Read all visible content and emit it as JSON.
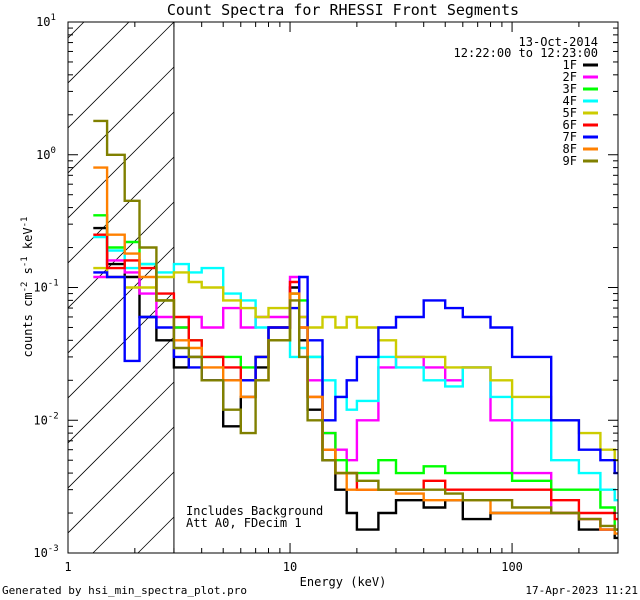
{
  "chart_data": {
    "type": "line",
    "title": "Count Spectra for RHESSI Front Segments",
    "xlabel": "Energy (keV)",
    "ylabel_parts": [
      "counts cm",
      "-2",
      " s",
      "-1",
      " keV",
      "-1"
    ],
    "xscale": "log",
    "yscale": "log",
    "xlim": [
      1,
      300
    ],
    "ylim": [
      0.001,
      10
    ],
    "x_ticks": [
      {
        "value": 1,
        "label": "1"
      },
      {
        "value": 10,
        "label": "10"
      },
      {
        "value": 100,
        "label": "100"
      }
    ],
    "y_ticks": [
      {
        "value": 0.001,
        "mant": "10",
        "exp": "-3"
      },
      {
        "value": 0.01,
        "mant": "10",
        "exp": "-2"
      },
      {
        "value": 0.1,
        "mant": "10",
        "exp": "-1"
      },
      {
        "value": 1,
        "mant": "10",
        "exp": "0"
      },
      {
        "value": 10,
        "mant": "10",
        "exp": "1"
      }
    ],
    "hatched_region_kev": [
      1,
      3
    ],
    "date": "13-Oct-2014",
    "time_range": "12:22:00 to 12:23:00",
    "annotations": [
      "Includes Background",
      "Att A0, FDecim 1"
    ],
    "series": [
      {
        "name": "1F",
        "color": "#000000",
        "points": [
          [
            1.3,
            0.28
          ],
          [
            1.5,
            0.15
          ],
          [
            1.8,
            0.12
          ],
          [
            2.1,
            0.06
          ],
          [
            2.5,
            0.04
          ],
          [
            3.0,
            0.025
          ],
          [
            3.5,
            0.03
          ],
          [
            4.0,
            0.02
          ],
          [
            5.0,
            0.009
          ],
          [
            6.0,
            0.015
          ],
          [
            7.0,
            0.025
          ],
          [
            8.0,
            0.05
          ],
          [
            10.0,
            0.1
          ],
          [
            11.0,
            0.04
          ],
          [
            12.0,
            0.012
          ],
          [
            14.0,
            0.005
          ],
          [
            16.0,
            0.003
          ],
          [
            18.0,
            0.002
          ],
          [
            20.0,
            0.0015
          ],
          [
            25.0,
            0.002
          ],
          [
            30.0,
            0.0025
          ],
          [
            40.0,
            0.0022
          ],
          [
            50.0,
            0.0025
          ],
          [
            60.0,
            0.0018
          ],
          [
            80.0,
            0.002
          ],
          [
            100.0,
            0.002
          ],
          [
            150.0,
            0.002
          ],
          [
            200.0,
            0.0015
          ],
          [
            250.0,
            0.0015
          ],
          [
            290.0,
            0.0013
          ]
        ]
      },
      {
        "name": "2F",
        "color": "#ff00ff",
        "points": [
          [
            1.3,
            0.12
          ],
          [
            1.5,
            0.16
          ],
          [
            1.8,
            0.13
          ],
          [
            2.1,
            0.09
          ],
          [
            2.5,
            0.06
          ],
          [
            3.0,
            0.05
          ],
          [
            3.5,
            0.06
          ],
          [
            4.0,
            0.05
          ],
          [
            5.0,
            0.07
          ],
          [
            6.0,
            0.05
          ],
          [
            7.0,
            0.06
          ],
          [
            8.0,
            0.06
          ],
          [
            10.0,
            0.12
          ],
          [
            11.0,
            0.06
          ],
          [
            12.0,
            0.02
          ],
          [
            14.0,
            0.008
          ],
          [
            16.0,
            0.006
          ],
          [
            18.0,
            0.005
          ],
          [
            20.0,
            0.01
          ],
          [
            25.0,
            0.025
          ],
          [
            30.0,
            0.03
          ],
          [
            40.0,
            0.025
          ],
          [
            50.0,
            0.02
          ],
          [
            60.0,
            0.025
          ],
          [
            80.0,
            0.01
          ],
          [
            100.0,
            0.004
          ],
          [
            150.0,
            0.002
          ],
          [
            200.0,
            0.0018
          ],
          [
            250.0,
            0.0015
          ],
          [
            290.0,
            0.0015
          ]
        ]
      },
      {
        "name": "3F",
        "color": "#00ff00",
        "points": [
          [
            1.3,
            0.35
          ],
          [
            1.5,
            0.2
          ],
          [
            1.8,
            0.22
          ],
          [
            2.1,
            0.15
          ],
          [
            2.5,
            0.08
          ],
          [
            3.0,
            0.05
          ],
          [
            3.5,
            0.04
          ],
          [
            4.0,
            0.03
          ],
          [
            5.0,
            0.03
          ],
          [
            6.0,
            0.025
          ],
          [
            7.0,
            0.03
          ],
          [
            8.0,
            0.04
          ],
          [
            10.0,
            0.09
          ],
          [
            11.0,
            0.08
          ],
          [
            12.0,
            0.03
          ],
          [
            14.0,
            0.008
          ],
          [
            16.0,
            0.005
          ],
          [
            18.0,
            0.004
          ],
          [
            20.0,
            0.004
          ],
          [
            25.0,
            0.005
          ],
          [
            30.0,
            0.004
          ],
          [
            40.0,
            0.0045
          ],
          [
            50.0,
            0.004
          ],
          [
            60.0,
            0.004
          ],
          [
            80.0,
            0.004
          ],
          [
            100.0,
            0.0035
          ],
          [
            150.0,
            0.003
          ],
          [
            200.0,
            0.003
          ],
          [
            250.0,
            0.0022
          ],
          [
            290.0,
            0.0015
          ]
        ]
      },
      {
        "name": "4F",
        "color": "#00ffff",
        "points": [
          [
            1.3,
            0.24
          ],
          [
            1.5,
            0.19
          ],
          [
            1.8,
            0.14
          ],
          [
            2.1,
            0.15
          ],
          [
            2.5,
            0.13
          ],
          [
            3.0,
            0.15
          ],
          [
            3.5,
            0.13
          ],
          [
            4.0,
            0.14
          ],
          [
            5.0,
            0.09
          ],
          [
            6.0,
            0.08
          ],
          [
            7.0,
            0.05
          ],
          [
            8.0,
            0.04
          ],
          [
            10.0,
            0.03
          ],
          [
            11.0,
            0.035
          ],
          [
            12.0,
            0.03
          ],
          [
            14.0,
            0.02
          ],
          [
            16.0,
            0.015
          ],
          [
            18.0,
            0.012
          ],
          [
            20.0,
            0.014
          ],
          [
            25.0,
            0.03
          ],
          [
            30.0,
            0.025
          ],
          [
            40.0,
            0.02
          ],
          [
            50.0,
            0.018
          ],
          [
            60.0,
            0.025
          ],
          [
            80.0,
            0.015
          ],
          [
            100.0,
            0.01
          ],
          [
            150.0,
            0.005
          ],
          [
            200.0,
            0.004
          ],
          [
            250.0,
            0.003
          ],
          [
            290.0,
            0.0025
          ]
        ]
      },
      {
        "name": "5F",
        "color": "#cccc00",
        "points": [
          [
            1.3,
            0.14
          ],
          [
            1.5,
            0.12
          ],
          [
            1.8,
            0.1
          ],
          [
            2.1,
            0.1
          ],
          [
            2.5,
            0.12
          ],
          [
            3.0,
            0.13
          ],
          [
            3.5,
            0.11
          ],
          [
            4.0,
            0.1
          ],
          [
            5.0,
            0.08
          ],
          [
            6.0,
            0.07
          ],
          [
            7.0,
            0.06
          ],
          [
            8.0,
            0.07
          ],
          [
            10.0,
            0.09
          ],
          [
            11.0,
            0.06
          ],
          [
            12.0,
            0.05
          ],
          [
            14.0,
            0.06
          ],
          [
            16.0,
            0.05
          ],
          [
            18.0,
            0.06
          ],
          [
            20.0,
            0.05
          ],
          [
            25.0,
            0.04
          ],
          [
            30.0,
            0.03
          ],
          [
            40.0,
            0.03
          ],
          [
            50.0,
            0.025
          ],
          [
            60.0,
            0.025
          ],
          [
            80.0,
            0.02
          ],
          [
            100.0,
            0.015
          ],
          [
            150.0,
            0.01
          ],
          [
            200.0,
            0.008
          ],
          [
            250.0,
            0.006
          ],
          [
            290.0,
            0.005
          ]
        ]
      },
      {
        "name": "6F",
        "color": "#ff0000",
        "points": [
          [
            1.3,
            0.25
          ],
          [
            1.5,
            0.14
          ],
          [
            1.8,
            0.16
          ],
          [
            2.1,
            0.14
          ],
          [
            2.5,
            0.09
          ],
          [
            3.0,
            0.06
          ],
          [
            3.5,
            0.04
          ],
          [
            4.0,
            0.03
          ],
          [
            5.0,
            0.025
          ],
          [
            6.0,
            0.02
          ],
          [
            7.0,
            0.03
          ],
          [
            8.0,
            0.05
          ],
          [
            10.0,
            0.11
          ],
          [
            11.0,
            0.05
          ],
          [
            12.0,
            0.015
          ],
          [
            14.0,
            0.006
          ],
          [
            16.0,
            0.004
          ],
          [
            18.0,
            0.004
          ],
          [
            20.0,
            0.003
          ],
          [
            25.0,
            0.003
          ],
          [
            30.0,
            0.003
          ],
          [
            40.0,
            0.0035
          ],
          [
            50.0,
            0.003
          ],
          [
            60.0,
            0.003
          ],
          [
            80.0,
            0.003
          ],
          [
            100.0,
            0.003
          ],
          [
            150.0,
            0.0025
          ],
          [
            200.0,
            0.002
          ],
          [
            250.0,
            0.002
          ],
          [
            290.0,
            0.0018
          ]
        ]
      },
      {
        "name": "7F",
        "color": "#0000ff",
        "points": [
          [
            1.3,
            0.13
          ],
          [
            1.5,
            0.12
          ],
          [
            1.8,
            0.028
          ],
          [
            2.1,
            0.06
          ],
          [
            2.5,
            0.05
          ],
          [
            3.0,
            0.03
          ],
          [
            3.5,
            0.025
          ],
          [
            4.0,
            0.02
          ],
          [
            5.0,
            0.02
          ],
          [
            6.0,
            0.02
          ],
          [
            7.0,
            0.03
          ],
          [
            8.0,
            0.05
          ],
          [
            10.0,
            0.07
          ],
          [
            11.0,
            0.12
          ],
          [
            12.0,
            0.04
          ],
          [
            14.0,
            0.01
          ],
          [
            16.0,
            0.015
          ],
          [
            18.0,
            0.02
          ],
          [
            20.0,
            0.03
          ],
          [
            25.0,
            0.05
          ],
          [
            30.0,
            0.06
          ],
          [
            40.0,
            0.08
          ],
          [
            50.0,
            0.07
          ],
          [
            60.0,
            0.06
          ],
          [
            80.0,
            0.05
          ],
          [
            100.0,
            0.03
          ],
          [
            150.0,
            0.01
          ],
          [
            200.0,
            0.006
          ],
          [
            250.0,
            0.005
          ],
          [
            290.0,
            0.004
          ]
        ]
      },
      {
        "name": "8F",
        "color": "#ff8000",
        "points": [
          [
            1.3,
            0.8
          ],
          [
            1.5,
            0.25
          ],
          [
            1.8,
            0.18
          ],
          [
            2.1,
            0.12
          ],
          [
            2.5,
            0.08
          ],
          [
            3.0,
            0.04
          ],
          [
            3.5,
            0.035
          ],
          [
            4.0,
            0.025
          ],
          [
            5.0,
            0.02
          ],
          [
            6.0,
            0.015
          ],
          [
            7.0,
            0.02
          ],
          [
            8.0,
            0.04
          ],
          [
            10.0,
            0.09
          ],
          [
            11.0,
            0.05
          ],
          [
            12.0,
            0.015
          ],
          [
            14.0,
            0.006
          ],
          [
            16.0,
            0.004
          ],
          [
            18.0,
            0.003
          ],
          [
            20.0,
            0.003
          ],
          [
            25.0,
            0.003
          ],
          [
            30.0,
            0.0028
          ],
          [
            40.0,
            0.0025
          ],
          [
            50.0,
            0.0025
          ],
          [
            60.0,
            0.0025
          ],
          [
            80.0,
            0.002
          ],
          [
            100.0,
            0.002
          ],
          [
            150.0,
            0.002
          ],
          [
            200.0,
            0.0018
          ],
          [
            250.0,
            0.0015
          ],
          [
            290.0,
            0.0014
          ]
        ]
      },
      {
        "name": "9F",
        "color": "#808000",
        "points": [
          [
            1.3,
            1.8
          ],
          [
            1.5,
            1.0
          ],
          [
            1.8,
            0.45
          ],
          [
            2.1,
            0.2
          ],
          [
            2.5,
            0.08
          ],
          [
            3.0,
            0.035
          ],
          [
            3.5,
            0.03
          ],
          [
            4.0,
            0.02
          ],
          [
            5.0,
            0.012
          ],
          [
            6.0,
            0.008
          ],
          [
            7.0,
            0.02
          ],
          [
            8.0,
            0.04
          ],
          [
            10.0,
            0.08
          ],
          [
            11.0,
            0.03
          ],
          [
            12.0,
            0.01
          ],
          [
            14.0,
            0.005
          ],
          [
            16.0,
            0.004
          ],
          [
            18.0,
            0.004
          ],
          [
            20.0,
            0.0035
          ],
          [
            25.0,
            0.003
          ],
          [
            30.0,
            0.003
          ],
          [
            40.0,
            0.003
          ],
          [
            50.0,
            0.0028
          ],
          [
            60.0,
            0.0025
          ],
          [
            80.0,
            0.0025
          ],
          [
            100.0,
            0.0022
          ],
          [
            150.0,
            0.002
          ],
          [
            200.0,
            0.0018
          ],
          [
            250.0,
            0.0016
          ],
          [
            290.0,
            0.0015
          ]
        ]
      }
    ]
  },
  "footer": {
    "generated_by": "Generated by hsi_min_spectra_plot.pro",
    "timestamp": "17-Apr-2023 11:21"
  }
}
